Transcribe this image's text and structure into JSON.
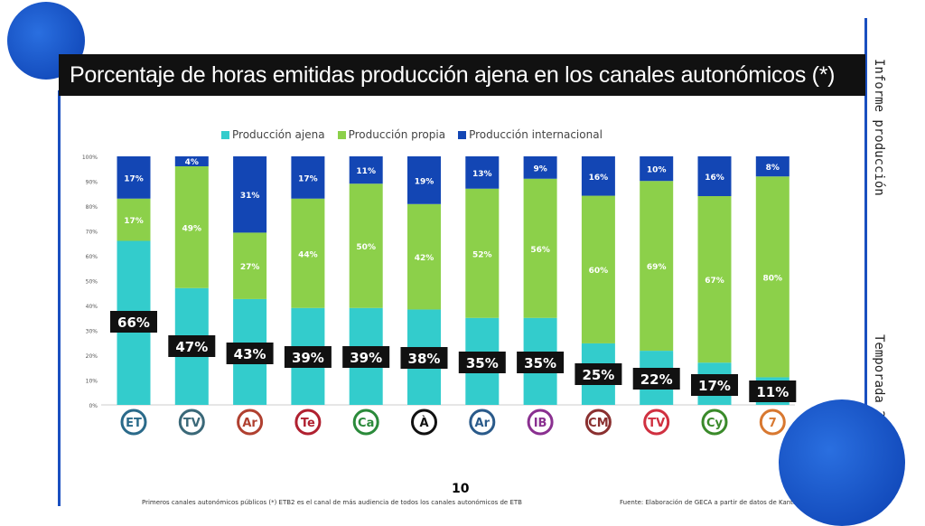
{
  "title": "Porcentaje de horas emitidas producción ajena en los canales autonómicos (*)",
  "side_top": "Informe producción",
  "side_bottom": "Temporada 2020/21",
  "page_number": "10",
  "footnote_left": "Primeros canales autonómicos públicos (*) ETB2 es el canal de más audiencia de todos los canales autonómicos de ETB",
  "footnote_right": "Fuente: Elaboración de GECA a partir de datos de Kantar Media.",
  "colors": {
    "ajena": "#33cccc",
    "propia": "#8cd04a",
    "internacional": "#1346b4",
    "accent": "#1a4fc0"
  },
  "chart_data": {
    "type": "bar",
    "stacked": true,
    "categories": [
      "ETB2",
      "TVG",
      "Aragón TV",
      "Telemadrid",
      "Canal Sur",
      "À Punt",
      "Aragón",
      "IB3",
      "CMM",
      "TV3",
      "CyL",
      "7 RM"
    ],
    "category_icons": [
      "etb-logo",
      "tvg-logo",
      "aragon-logo",
      "telemadrid-logo",
      "canal-sur-logo",
      "apunt-logo",
      "tpa-logo",
      "ib3-logo",
      "cmm-logo",
      "tv3-logo",
      "cyl-logo",
      "7rm-logo"
    ],
    "series": [
      {
        "name": "Producción ajena",
        "values": [
          66,
          47,
          43,
          39,
          39,
          38,
          35,
          35,
          25,
          22,
          17,
          11
        ]
      },
      {
        "name": "Producción propia",
        "values": [
          17,
          49,
          27,
          44,
          50,
          42,
          52,
          56,
          60,
          69,
          67,
          80
        ]
      },
      {
        "name": "Producción internacional",
        "values": [
          17,
          4,
          31,
          17,
          11,
          19,
          13,
          9,
          16,
          10,
          16,
          8
        ]
      }
    ],
    "yticks": [
      "0%",
      "10%",
      "20%",
      "30%",
      "40%",
      "50%",
      "60%",
      "70%",
      "80%",
      "90%",
      "100%"
    ],
    "ylim": [
      0,
      100
    ],
    "legend": "top",
    "grid": false
  }
}
